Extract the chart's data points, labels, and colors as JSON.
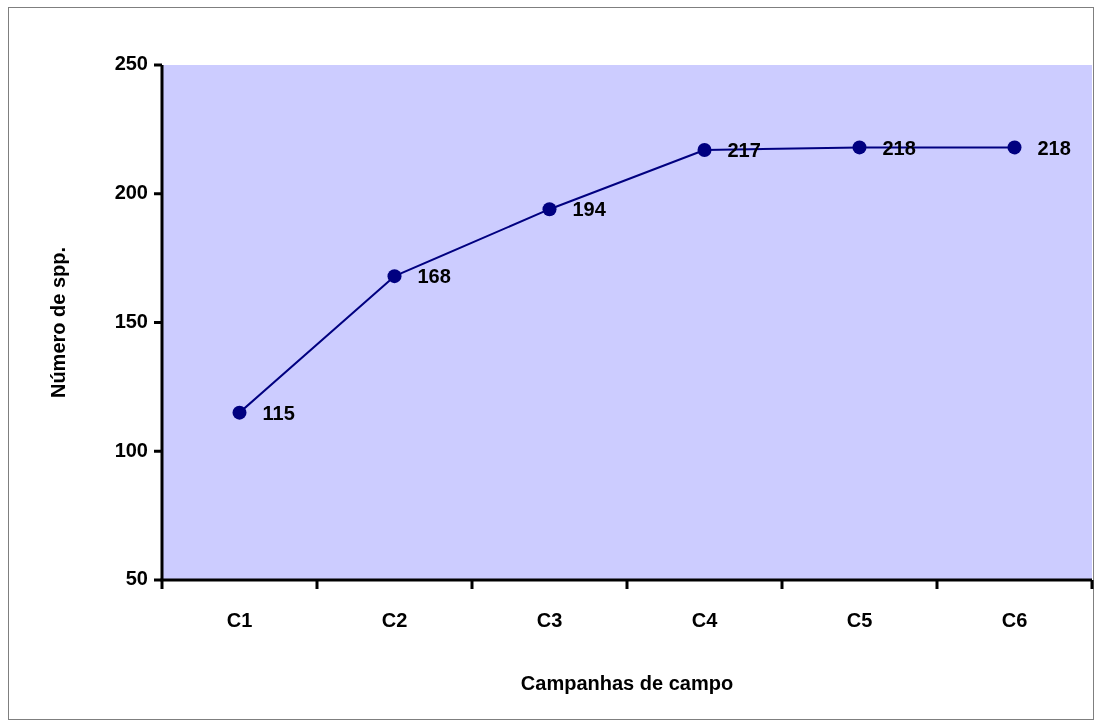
{
  "chart_data": {
    "type": "line",
    "xlabel": "Campanhas de campo",
    "ylabel": "Número de spp.",
    "categories": [
      "C1",
      "C2",
      "C3",
      "C4",
      "C5",
      "C6"
    ],
    "series": [
      {
        "color": "#000080",
        "values": [
          115,
          168,
          194,
          217,
          218,
          218
        ]
      }
    ],
    "ylim": [
      50,
      250
    ],
    "yticks": [
      50,
      100,
      150,
      200,
      250
    ],
    "data_labels": true,
    "marker": "circle"
  }
}
